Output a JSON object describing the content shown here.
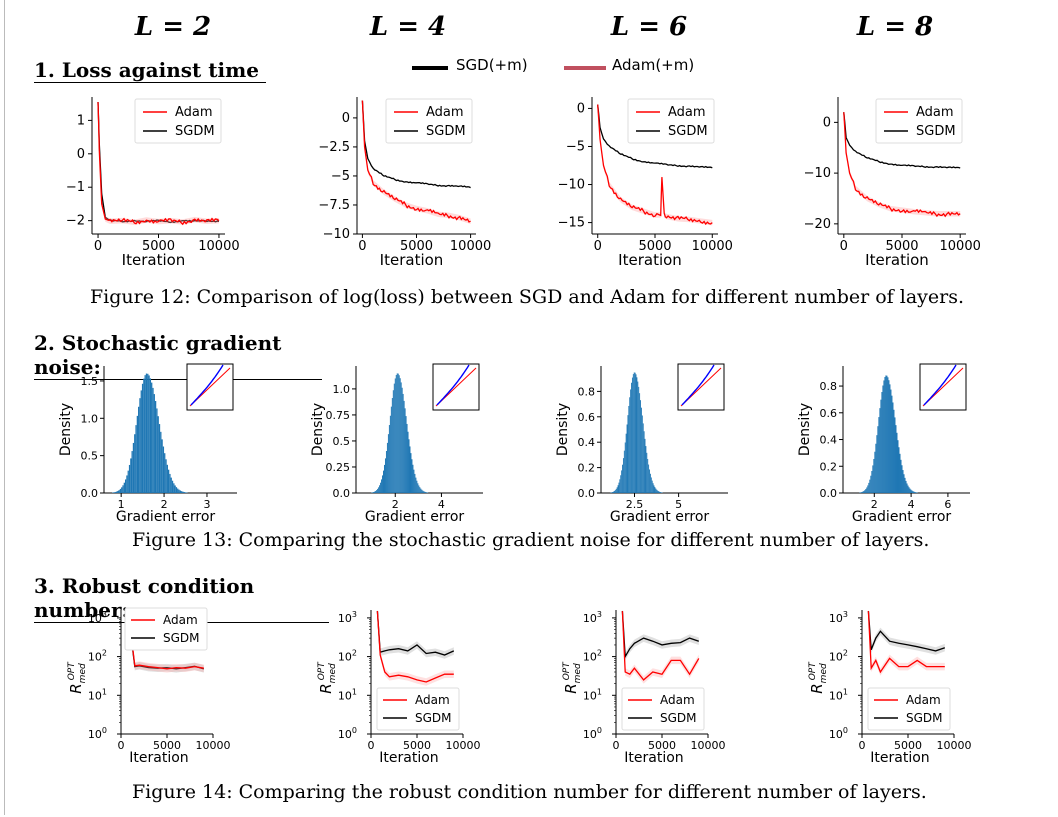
{
  "columns": {
    "labels": [
      "L = 2",
      "L = 4",
      "L = 6",
      "L = 8"
    ]
  },
  "sections": [
    {
      "title": "1. Loss against time",
      "caption": "Figure 12: Comparison of log(loss) between SGD and Adam for different number of layers."
    },
    {
      "title": "2. Stochastic gradient noise:",
      "caption": "Figure 13: Comparing the stochastic gradient noise for different number of layers."
    },
    {
      "title": "3. Robust condition number:",
      "caption": "Figure 14: Comparing the robust condition number for different number of layers."
    }
  ],
  "top_legend": {
    "entries": [
      {
        "label": "SGD(+m)",
        "color": "#000000"
      },
      {
        "label": "Adam(+m)",
        "color": "#c0505f"
      }
    ]
  },
  "colors": {
    "adam": "#ff0000",
    "sgdm": "#000000",
    "hist": "#1f77b4",
    "inset_blue": "#0000ff",
    "inset_red": "#ff0000"
  },
  "chart_data": [
    {
      "type": "line",
      "panel": "loss",
      "L": 2,
      "xlabel": "Iteration",
      "ylabel": "",
      "xlim": [
        -500,
        10500
      ],
      "ylim": [
        -2.4,
        1.7
      ],
      "yticks": [
        1,
        0,
        -1,
        -2
      ],
      "xticks": [
        0,
        5000,
        10000
      ],
      "legend": "top-right",
      "series": [
        {
          "name": "Adam",
          "x": [
            0,
            100,
            300,
            600,
            1000,
            2000,
            3000,
            4000,
            5000,
            6000,
            7000,
            8000,
            9000,
            10000
          ],
          "y": [
            1.55,
            0.1,
            -1.5,
            -1.95,
            -2.02,
            -2.0,
            -2.05,
            -1.98,
            -2.03,
            -2.0,
            -2.04,
            -1.97,
            -2.02,
            -2.0
          ]
        },
        {
          "name": "SGDM",
          "x": [
            0,
            100,
            300,
            600,
            1000,
            2000,
            3000,
            4000,
            5000,
            6000,
            7000,
            8000,
            9000,
            10000
          ],
          "y": [
            1.55,
            0.3,
            -1.2,
            -1.9,
            -2.0,
            -2.02,
            -2.0,
            -2.03,
            -2.0,
            -2.04,
            -2.0,
            -2.02,
            -2.01,
            -2.02
          ]
        }
      ]
    },
    {
      "type": "line",
      "panel": "loss",
      "L": 4,
      "xlabel": "Iteration",
      "ylabel": "",
      "xlim": [
        -500,
        10500
      ],
      "ylim": [
        -10,
        1.8
      ],
      "yticks": [
        0,
        -2.5,
        -5,
        -7.5,
        -10
      ],
      "xticks": [
        0,
        5000,
        10000
      ],
      "legend": "top-right",
      "series": [
        {
          "name": "Adam",
          "x": [
            0,
            200,
            500,
            1000,
            2000,
            3000,
            4000,
            5000,
            6000,
            7000,
            8000,
            9000,
            10000
          ],
          "y": [
            1.5,
            -2.5,
            -4.5,
            -5.6,
            -6.4,
            -7.0,
            -7.5,
            -7.8,
            -8.0,
            -8.3,
            -8.4,
            -8.6,
            -8.9
          ]
        },
        {
          "name": "SGDM",
          "x": [
            0,
            200,
            500,
            1000,
            2000,
            3000,
            4000,
            5000,
            6000,
            7000,
            8000,
            9000,
            10000
          ],
          "y": [
            1.5,
            -2.0,
            -3.5,
            -4.4,
            -5.0,
            -5.3,
            -5.5,
            -5.6,
            -5.7,
            -5.8,
            -5.85,
            -5.9,
            -6.0
          ]
        }
      ]
    },
    {
      "type": "line",
      "panel": "loss",
      "L": 6,
      "xlabel": "Iteration",
      "ylabel": "",
      "xlim": [
        -500,
        10500
      ],
      "ylim": [
        -16.5,
        1.5
      ],
      "yticks": [
        0,
        -5,
        -10,
        -15
      ],
      "xticks": [
        0,
        5000,
        10000
      ],
      "legend": "top-right",
      "series": [
        {
          "name": "Adam",
          "x": [
            0,
            200,
            500,
            1000,
            2000,
            3000,
            4000,
            5000,
            5500,
            5600,
            5800,
            6000,
            7000,
            8000,
            9000,
            10000
          ],
          "y": [
            0.5,
            -4.0,
            -7.5,
            -10.0,
            -12.0,
            -13.0,
            -13.5,
            -14.0,
            -14.0,
            -9.0,
            -14.0,
            -14.2,
            -14.5,
            -14.6,
            -14.8,
            -15.0
          ]
        },
        {
          "name": "SGDM",
          "x": [
            0,
            200,
            500,
            1000,
            2000,
            3000,
            4000,
            5000,
            6000,
            7000,
            8000,
            9000,
            10000
          ],
          "y": [
            0.5,
            -2.5,
            -4.0,
            -5.0,
            -6.0,
            -6.6,
            -7.0,
            -7.2,
            -7.4,
            -7.5,
            -7.6,
            -7.7,
            -7.8
          ]
        }
      ]
    },
    {
      "type": "line",
      "panel": "loss",
      "L": 8,
      "xlabel": "Iteration",
      "ylabel": "",
      "xlim": [
        -500,
        10500
      ],
      "ylim": [
        -22,
        5
      ],
      " yticks": null,
      "yticks": [
        0,
        -10,
        -20
      ],
      "xticks": [
        0,
        5000,
        10000
      ],
      "legend": "top-right",
      "series": [
        {
          "name": "Adam",
          "x": [
            0,
            200,
            500,
            1000,
            2000,
            3000,
            4000,
            5000,
            6000,
            7000,
            8000,
            9000,
            10000
          ],
          "y": [
            2.0,
            -6.0,
            -10.0,
            -13.0,
            -15.0,
            -16.2,
            -17.0,
            -17.3,
            -17.6,
            -17.8,
            -18.0,
            -18.0,
            -18.0
          ]
        },
        {
          "name": "SGDM",
          "x": [
            0,
            200,
            500,
            1000,
            2000,
            3000,
            4000,
            5000,
            6000,
            7000,
            8000,
            9000,
            10000
          ],
          "y": [
            2.0,
            -3.0,
            -4.5,
            -5.8,
            -7.0,
            -7.7,
            -8.2,
            -8.5,
            -8.6,
            -8.7,
            -8.8,
            -8.9,
            -9.0
          ]
        }
      ]
    },
    {
      "type": "bar",
      "panel": "noise",
      "L": 2,
      "xlabel": "Gradient error",
      "ylabel": "Density",
      "xlim": [
        0.6,
        3.7
      ],
      "ylim": [
        0,
        1.7
      ],
      "xticks": [
        1,
        2,
        3
      ],
      "yticks": [
        0.0,
        0.5,
        1.0,
        1.5
      ],
      "mean": 1.6,
      "sd": 0.25,
      "peak": 1.6
    },
    {
      "type": "bar",
      "panel": "noise",
      "L": 4,
      "xlabel": "Gradient error",
      "ylabel": "Density",
      "xlim": [
        0.3,
        5.8
      ],
      "ylim": [
        0,
        1.22
      ],
      "xticks": [
        2,
        4
      ],
      "yticks": [
        0.0,
        0.25,
        0.5,
        0.75,
        1.0
      ],
      "mean": 2.1,
      "sd": 0.35,
      "peak": 1.15
    },
    {
      "type": "bar",
      "panel": "noise",
      "L": 6,
      "xlabel": "Gradient error",
      "ylabel": "Density",
      "xlim": [
        0.6,
        7.8
      ],
      "ylim": [
        0,
        1.0
      ],
      "xticks": [
        2.5,
        5.0
      ],
      "yticks": [
        0.0,
        0.2,
        0.4,
        0.6,
        0.8
      ],
      "mean": 2.5,
      "sd": 0.42,
      "peak": 0.95
    },
    {
      "type": "bar",
      "panel": "noise",
      "L": 8,
      "xlabel": "Gradient error",
      "ylabel": "Density",
      "xlim": [
        0.3,
        7.2
      ],
      "ylim": [
        0,
        0.95
      ],
      "xticks": [
        2,
        4,
        6
      ],
      "yticks": [
        0.0,
        0.2,
        0.4,
        0.6,
        0.8
      ],
      "mean": 2.65,
      "sd": 0.45,
      "peak": 0.88
    },
    {
      "type": "line",
      "panel": "condition",
      "L": 2,
      "xlabel": "Iteration",
      "ylabel": "R_med^OPT",
      "log_y": true,
      "xlim": [
        0,
        10000
      ],
      "ylim": [
        1,
        1600
      ],
      "legend": "top-left",
      "series": [
        {
          "name": "Adam",
          "x": [
            700,
            1000,
            1500,
            2000,
            3000,
            4000,
            5000,
            6000,
            7000,
            8000,
            9000
          ],
          "y": [
            1500,
            600,
            58,
            60,
            55,
            52,
            48,
            52,
            50,
            55,
            50
          ]
        },
        {
          "name": "SGDM",
          "x": [
            700,
            1000,
            1500,
            2000,
            3000,
            4000,
            5000,
            6000,
            7000,
            8000,
            9000
          ],
          "y": [
            1500,
            500,
            55,
            58,
            52,
            50,
            52,
            48,
            52,
            56,
            48
          ]
        }
      ]
    },
    {
      "type": "line",
      "panel": "condition",
      "L": 4,
      "xlabel": "Iteration",
      "ylabel": "R_med^OPT",
      "log_y": true,
      "xlim": [
        0,
        10000
      ],
      "ylim": [
        1,
        1600
      ],
      "legend": "bottom-right",
      "series": [
        {
          "name": "Adam",
          "x": [
            700,
            1000,
            1500,
            2000,
            3000,
            4000,
            5000,
            6000,
            7000,
            8000,
            9000
          ],
          "y": [
            1500,
            110,
            40,
            30,
            33,
            30,
            25,
            22,
            28,
            35,
            35
          ]
        },
        {
          "name": "SGDM",
          "x": [
            700,
            1000,
            1500,
            2000,
            3000,
            4000,
            5000,
            6000,
            7000,
            8000,
            9000
          ],
          "y": [
            1500,
            130,
            140,
            150,
            160,
            140,
            200,
            120,
            130,
            110,
            140
          ]
        }
      ]
    },
    {
      "type": "line",
      "panel": "condition",
      "L": 6,
      "xlabel": "Iteration",
      "ylabel": "R_med^OPT",
      "log_y": true,
      "xlim": [
        0,
        10000
      ],
      "ylim": [
        1,
        1600
      ],
      "legend": "bottom-right",
      "series": [
        {
          "name": "Adam",
          "x": [
            700,
            1000,
            1500,
            2000,
            3000,
            4000,
            5000,
            6000,
            7000,
            8000,
            9000
          ],
          "y": [
            1500,
            40,
            35,
            50,
            25,
            40,
            35,
            80,
            80,
            35,
            90
          ]
        },
        {
          "name": "SGDM",
          "x": [
            700,
            1000,
            1500,
            2000,
            3000,
            4000,
            5000,
            6000,
            7000,
            8000,
            9000
          ],
          "y": [
            1500,
            100,
            160,
            220,
            300,
            250,
            200,
            220,
            230,
            300,
            250
          ]
        }
      ]
    },
    {
      "type": "line",
      "panel": "condition",
      "L": 8,
      "xlabel": "Iteration",
      "ylabel": "R_med^OPT",
      "log_y": true,
      "xlim": [
        0,
        10000
      ],
      "ylim": [
        1,
        1600
      ],
      "legend": "bottom-right",
      "series": [
        {
          "name": "Adam",
          "x": [
            700,
            1000,
            1500,
            2000,
            3000,
            4000,
            5000,
            6000,
            7000,
            8000,
            9000
          ],
          "y": [
            1500,
            50,
            80,
            40,
            90,
            55,
            55,
            80,
            55,
            55,
            55
          ]
        },
        {
          "name": "SGDM",
          "x": [
            700,
            1000,
            1500,
            2000,
            3000,
            4000,
            5000,
            6000,
            7000,
            8000,
            9000
          ],
          "y": [
            1500,
            150,
            300,
            450,
            250,
            220,
            200,
            180,
            160,
            140,
            170
          ]
        }
      ]
    }
  ]
}
